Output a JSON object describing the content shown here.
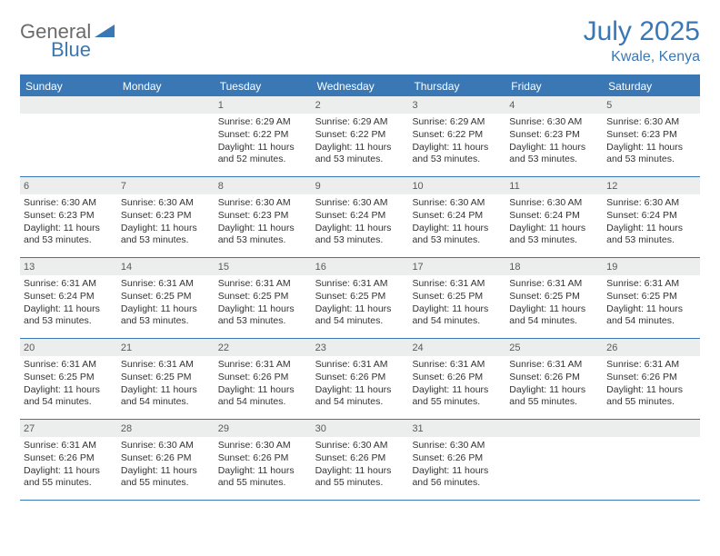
{
  "logo": {
    "general": "General",
    "blue": "Blue"
  },
  "title": "July 2025",
  "location": "Kwale, Kenya",
  "colors": {
    "accent": "#3a78b5",
    "daynum_bg": "#eceded",
    "text": "#333333",
    "logo_gray": "#6b6b6b"
  },
  "dayHeaders": [
    "Sunday",
    "Monday",
    "Tuesday",
    "Wednesday",
    "Thursday",
    "Friday",
    "Saturday"
  ],
  "weeks": [
    [
      {
        "empty": true
      },
      {
        "empty": true
      },
      {
        "day": "1",
        "sunrise": "Sunrise: 6:29 AM",
        "sunset": "Sunset: 6:22 PM",
        "daylight": "Daylight: 11 hours and 52 minutes."
      },
      {
        "day": "2",
        "sunrise": "Sunrise: 6:29 AM",
        "sunset": "Sunset: 6:22 PM",
        "daylight": "Daylight: 11 hours and 53 minutes."
      },
      {
        "day": "3",
        "sunrise": "Sunrise: 6:29 AM",
        "sunset": "Sunset: 6:22 PM",
        "daylight": "Daylight: 11 hours and 53 minutes."
      },
      {
        "day": "4",
        "sunrise": "Sunrise: 6:30 AM",
        "sunset": "Sunset: 6:23 PM",
        "daylight": "Daylight: 11 hours and 53 minutes."
      },
      {
        "day": "5",
        "sunrise": "Sunrise: 6:30 AM",
        "sunset": "Sunset: 6:23 PM",
        "daylight": "Daylight: 11 hours and 53 minutes."
      }
    ],
    [
      {
        "day": "6",
        "sunrise": "Sunrise: 6:30 AM",
        "sunset": "Sunset: 6:23 PM",
        "daylight": "Daylight: 11 hours and 53 minutes."
      },
      {
        "day": "7",
        "sunrise": "Sunrise: 6:30 AM",
        "sunset": "Sunset: 6:23 PM",
        "daylight": "Daylight: 11 hours and 53 minutes."
      },
      {
        "day": "8",
        "sunrise": "Sunrise: 6:30 AM",
        "sunset": "Sunset: 6:23 PM",
        "daylight": "Daylight: 11 hours and 53 minutes."
      },
      {
        "day": "9",
        "sunrise": "Sunrise: 6:30 AM",
        "sunset": "Sunset: 6:24 PM",
        "daylight": "Daylight: 11 hours and 53 minutes."
      },
      {
        "day": "10",
        "sunrise": "Sunrise: 6:30 AM",
        "sunset": "Sunset: 6:24 PM",
        "daylight": "Daylight: 11 hours and 53 minutes."
      },
      {
        "day": "11",
        "sunrise": "Sunrise: 6:30 AM",
        "sunset": "Sunset: 6:24 PM",
        "daylight": "Daylight: 11 hours and 53 minutes."
      },
      {
        "day": "12",
        "sunrise": "Sunrise: 6:30 AM",
        "sunset": "Sunset: 6:24 PM",
        "daylight": "Daylight: 11 hours and 53 minutes."
      }
    ],
    [
      {
        "day": "13",
        "sunrise": "Sunrise: 6:31 AM",
        "sunset": "Sunset: 6:24 PM",
        "daylight": "Daylight: 11 hours and 53 minutes."
      },
      {
        "day": "14",
        "sunrise": "Sunrise: 6:31 AM",
        "sunset": "Sunset: 6:25 PM",
        "daylight": "Daylight: 11 hours and 53 minutes."
      },
      {
        "day": "15",
        "sunrise": "Sunrise: 6:31 AM",
        "sunset": "Sunset: 6:25 PM",
        "daylight": "Daylight: 11 hours and 53 minutes."
      },
      {
        "day": "16",
        "sunrise": "Sunrise: 6:31 AM",
        "sunset": "Sunset: 6:25 PM",
        "daylight": "Daylight: 11 hours and 54 minutes."
      },
      {
        "day": "17",
        "sunrise": "Sunrise: 6:31 AM",
        "sunset": "Sunset: 6:25 PM",
        "daylight": "Daylight: 11 hours and 54 minutes."
      },
      {
        "day": "18",
        "sunrise": "Sunrise: 6:31 AM",
        "sunset": "Sunset: 6:25 PM",
        "daylight": "Daylight: 11 hours and 54 minutes."
      },
      {
        "day": "19",
        "sunrise": "Sunrise: 6:31 AM",
        "sunset": "Sunset: 6:25 PM",
        "daylight": "Daylight: 11 hours and 54 minutes."
      }
    ],
    [
      {
        "day": "20",
        "sunrise": "Sunrise: 6:31 AM",
        "sunset": "Sunset: 6:25 PM",
        "daylight": "Daylight: 11 hours and 54 minutes."
      },
      {
        "day": "21",
        "sunrise": "Sunrise: 6:31 AM",
        "sunset": "Sunset: 6:25 PM",
        "daylight": "Daylight: 11 hours and 54 minutes."
      },
      {
        "day": "22",
        "sunrise": "Sunrise: 6:31 AM",
        "sunset": "Sunset: 6:26 PM",
        "daylight": "Daylight: 11 hours and 54 minutes."
      },
      {
        "day": "23",
        "sunrise": "Sunrise: 6:31 AM",
        "sunset": "Sunset: 6:26 PM",
        "daylight": "Daylight: 11 hours and 54 minutes."
      },
      {
        "day": "24",
        "sunrise": "Sunrise: 6:31 AM",
        "sunset": "Sunset: 6:26 PM",
        "daylight": "Daylight: 11 hours and 55 minutes."
      },
      {
        "day": "25",
        "sunrise": "Sunrise: 6:31 AM",
        "sunset": "Sunset: 6:26 PM",
        "daylight": "Daylight: 11 hours and 55 minutes."
      },
      {
        "day": "26",
        "sunrise": "Sunrise: 6:31 AM",
        "sunset": "Sunset: 6:26 PM",
        "daylight": "Daylight: 11 hours and 55 minutes."
      }
    ],
    [
      {
        "day": "27",
        "sunrise": "Sunrise: 6:31 AM",
        "sunset": "Sunset: 6:26 PM",
        "daylight": "Daylight: 11 hours and 55 minutes."
      },
      {
        "day": "28",
        "sunrise": "Sunrise: 6:30 AM",
        "sunset": "Sunset: 6:26 PM",
        "daylight": "Daylight: 11 hours and 55 minutes."
      },
      {
        "day": "29",
        "sunrise": "Sunrise: 6:30 AM",
        "sunset": "Sunset: 6:26 PM",
        "daylight": "Daylight: 11 hours and 55 minutes."
      },
      {
        "day": "30",
        "sunrise": "Sunrise: 6:30 AM",
        "sunset": "Sunset: 6:26 PM",
        "daylight": "Daylight: 11 hours and 55 minutes."
      },
      {
        "day": "31",
        "sunrise": "Sunrise: 6:30 AM",
        "sunset": "Sunset: 6:26 PM",
        "daylight": "Daylight: 11 hours and 56 minutes."
      },
      {
        "empty": true
      },
      {
        "empty": true
      }
    ]
  ]
}
